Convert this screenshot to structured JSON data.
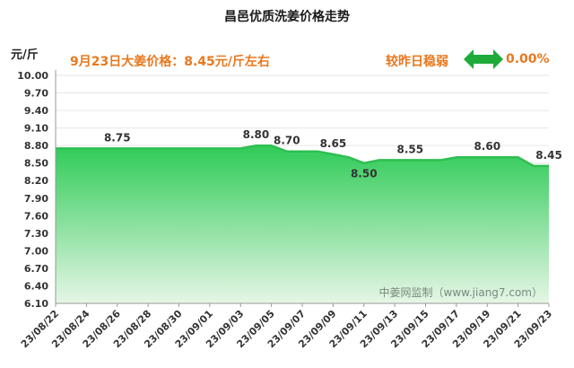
{
  "header": {
    "title": "昌邑优质洗姜价格走势",
    "unit": "元/斤",
    "headline": "9月23日大姜价格：8.45元/斤左右",
    "compare_label": "较昨日稳弱",
    "change_pct": "0.00%",
    "arrow_icon": "double-arrow-icon",
    "arrow_color": "#1faa3a"
  },
  "watermark": "中姜网监制（www.jiang7.com）",
  "colors": {
    "line": "#2fbf52",
    "fill_top": "#2fcb57",
    "fill_bottom": "#e6f6e6",
    "accent": "#e8781f",
    "grid": "#e6e6e6"
  },
  "chart_data": {
    "type": "area",
    "title": "昌邑优质洗姜价格走势",
    "ylabel": "元/斤",
    "ylim": [
      6.1,
      10.0
    ],
    "yticks": [
      "10.00",
      "9.70",
      "9.40",
      "9.10",
      "8.80",
      "8.50",
      "8.20",
      "7.90",
      "7.60",
      "7.30",
      "7.00",
      "6.70",
      "6.40",
      "6.10"
    ],
    "x": [
      "23/08/22",
      "23/08/23",
      "23/08/24",
      "23/08/25",
      "23/08/26",
      "23/08/27",
      "23/08/28",
      "23/08/29",
      "23/08/30",
      "23/08/31",
      "23/09/01",
      "23/09/02",
      "23/09/03",
      "23/09/04",
      "23/09/05",
      "23/09/06",
      "23/09/07",
      "23/09/08",
      "23/09/09",
      "23/09/10",
      "23/09/11",
      "23/09/12",
      "23/09/13",
      "23/09/14",
      "23/09/15",
      "23/09/16",
      "23/09/17",
      "23/09/18",
      "23/09/19",
      "23/09/20",
      "23/09/21",
      "23/09/22",
      "23/09/23"
    ],
    "xtick_labels": [
      "23/08/22",
      "23/08/24",
      "23/08/26",
      "23/08/28",
      "23/08/30",
      "23/09/01",
      "23/09/03",
      "23/09/05",
      "23/09/07",
      "23/09/09",
      "23/09/11",
      "23/09/13",
      "23/09/15",
      "23/09/17",
      "23/09/19",
      "23/09/21",
      "23/09/23"
    ],
    "series": [
      {
        "values": [
          8.75,
          8.75,
          8.75,
          8.75,
          8.75,
          8.75,
          8.75,
          8.75,
          8.75,
          8.75,
          8.75,
          8.75,
          8.75,
          8.8,
          8.8,
          8.7,
          8.7,
          8.7,
          8.65,
          8.6,
          8.5,
          8.55,
          8.55,
          8.55,
          8.55,
          8.55,
          8.6,
          8.6,
          8.6,
          8.6,
          8.6,
          8.45,
          8.45
        ]
      }
    ],
    "annotations": [
      {
        "x": "23/08/26",
        "y": 8.75,
        "label": "8.75",
        "pos": "above"
      },
      {
        "x": "23/09/04",
        "y": 8.8,
        "label": "8.80",
        "pos": "above"
      },
      {
        "x": "23/09/06",
        "y": 8.7,
        "label": "8.70",
        "pos": "above"
      },
      {
        "x": "23/09/09",
        "y": 8.65,
        "label": "8.65",
        "pos": "above"
      },
      {
        "x": "23/09/11",
        "y": 8.5,
        "label": "8.50",
        "pos": "below"
      },
      {
        "x": "23/09/14",
        "y": 8.55,
        "label": "8.55",
        "pos": "above"
      },
      {
        "x": "23/09/19",
        "y": 8.6,
        "label": "8.60",
        "pos": "above"
      },
      {
        "x": "23/09/23",
        "y": 8.45,
        "label": "8.45",
        "pos": "above"
      }
    ],
    "grid": true
  }
}
